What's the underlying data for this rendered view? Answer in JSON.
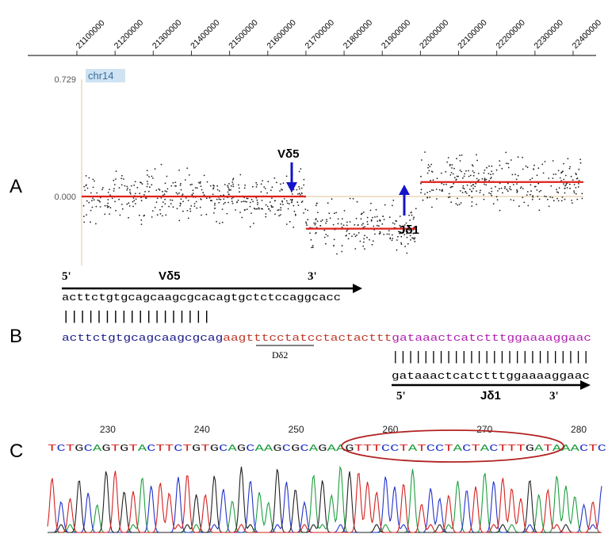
{
  "panel_labels": {
    "a": "A",
    "b": "B",
    "c": "C"
  },
  "chart_data": {
    "type": "scatter",
    "title": "",
    "xlabel": "",
    "ylabel": "",
    "xlim": [
      21000000,
      22450000
    ],
    "ylim": [
      -0.45,
      0.729
    ],
    "x_ticks": [
      "21100000",
      "21200000",
      "21300000",
      "21400000",
      "21500000",
      "21600000",
      "21700000",
      "21800000",
      "21900000",
      "22000000",
      "22100000",
      "22200000",
      "22300000",
      "22400000"
    ],
    "y_ticks": [
      "0.729",
      "0.000"
    ],
    "chromosome_label": "chr14",
    "grid": false,
    "segments": [
      {
        "start": 21000000,
        "end": 21700000,
        "mean": 0.0
      },
      {
        "start": 21700000,
        "end": 21990000,
        "mean": -0.2
      },
      {
        "start": 22000000,
        "end": 22450000,
        "mean": 0.09
      }
    ],
    "points_summary": [
      {
        "start": 21000000,
        "end": 21700000,
        "center": 0.0,
        "spread": 0.15
      },
      {
        "start": 21700000,
        "end": 21990000,
        "center": -0.2,
        "spread": 0.15
      },
      {
        "start": 22000000,
        "end": 22450000,
        "center": 0.09,
        "spread": 0.15
      }
    ],
    "annotations": [
      {
        "label": "Vδ5",
        "x": 21700000,
        "direction": "down"
      },
      {
        "label": "Jδ1",
        "x": 22000000,
        "direction": "up"
      }
    ],
    "colors": {
      "segment": "#e0201a",
      "points": "#222222",
      "arrow": "#1414c8",
      "axis": "#e8cfa8",
      "label_bg": "#cfe3f3",
      "label_text": "#3a6e9a"
    }
  },
  "panel_b": {
    "v_prime5": "5'",
    "v_label": "Vδ5",
    "v_prime3": "3'",
    "germline_v_seq": "acttctgtgcagcaagcgcacagtgctctccaggcacc",
    "match_bars_left": "||||||||||||||||||",
    "junction_blue": "acttctgtgcagcaagcgcag",
    "junction_red": "aagtttcctatcctactacttt",
    "junction_magenta": "gataaactcatctttggaaaaggaac",
    "d_label": "Dδ2",
    "match_bars_right": "||||||||||||||||||||||||||",
    "germline_j_seq": "gataaactcatctttggaaaaggaac",
    "j_prime5": "5'",
    "j_label": "Jδ1",
    "j_prime3": "3'",
    "colors": {
      "blue": "#1a1a8c",
      "red": "#c0392b",
      "magenta": "#b21fb2"
    }
  },
  "panel_c": {
    "positions": [
      "230",
      "240",
      "250",
      "260",
      "270",
      "280"
    ],
    "sequence": "TCTGCAGTGTACTTCTGTGCAGCAAGCGCAGAAGTTTCCTATCCTACTACTTTGATAAACTC",
    "base_colors": {
      "A": "#1e9e3e",
      "C": "#2233cc",
      "G": "#222222",
      "T": "#d4211f"
    },
    "highlight_color": "#b22222"
  }
}
